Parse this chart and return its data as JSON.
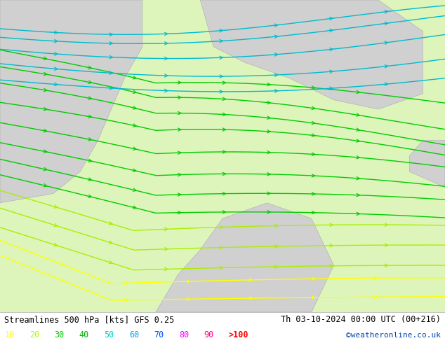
{
  "title_left": "Streamlines 500 hPa [kts] GFS 0.25",
  "title_right": "Th 03-10-2024 00:00 UTC (00+216)",
  "credit": "©weatheronline.co.uk",
  "legend_labels": [
    "10",
    "20",
    "30",
    "40",
    "50",
    "60",
    "70",
    "80",
    "90",
    ">100"
  ],
  "legend_colors": [
    "#ffff00",
    "#aaff00",
    "#00cc00",
    "#00aa00",
    "#00cccc",
    "#00aaff",
    "#0055ff",
    "#ff00ff",
    "#ff0088",
    "#ff0000"
  ],
  "bg_color": "#bbee88",
  "pale_green": "#ddf5bb",
  "gray_land": "#d0d0d0",
  "title_color": "#000000",
  "credit_color": "#0044aa",
  "figwidth": 6.34,
  "figheight": 4.9,
  "dpi": 100,
  "colors": {
    "cyan": "#00bbcc",
    "bright_green": "#00cc00",
    "green": "#44cc00",
    "lime": "#aaee00",
    "yellow": "#ffff00",
    "orange": "#ffaa00"
  }
}
